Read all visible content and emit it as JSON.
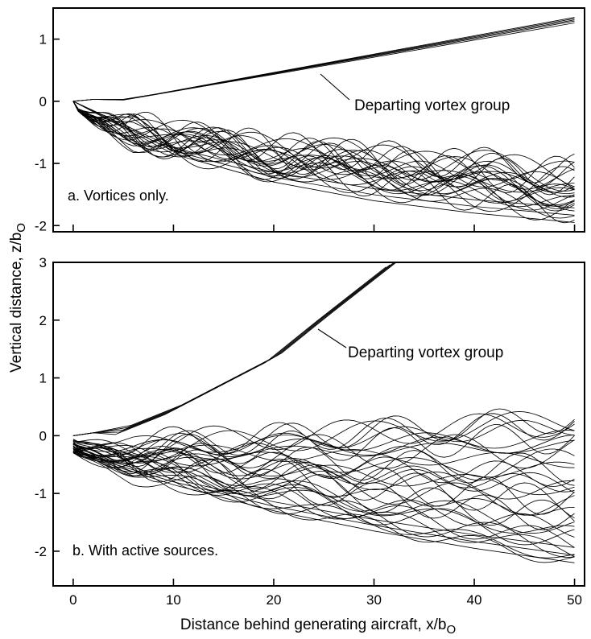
{
  "chart_data": [
    {
      "id": "a",
      "type": "line",
      "panel_label": "a. Vortices only.",
      "xlim": [
        -2,
        51
      ],
      "ylim": [
        -2.1,
        1.5
      ],
      "y_ticks": [
        1,
        0,
        -1,
        -2
      ],
      "y_tick_labels": [
        "1",
        "0",
        "-1",
        "-2"
      ],
      "annotation": "Departing vortex group",
      "grid": false,
      "groups": {
        "departing": {
          "count": 5,
          "x_end": 50,
          "y_end": [
            1.26,
            1.29,
            1.31,
            1.33,
            1.35
          ]
        },
        "main": {
          "count": 26,
          "mean_end_y": -1.55,
          "lower_envelope": [
            [
              0,
              0
            ],
            [
              10,
              -0.85
            ],
            [
              20,
              -1.3
            ],
            [
              30,
              -1.6
            ],
            [
              40,
              -1.8
            ],
            [
              50,
              -1.95
            ]
          ],
          "end_y_range": [
            -1.9,
            -1.2
          ]
        }
      }
    },
    {
      "id": "b",
      "type": "line",
      "panel_label": "b. With active sources.",
      "xlim": [
        -2,
        51
      ],
      "ylim": [
        -2.6,
        3
      ],
      "y_ticks": [
        3,
        2,
        1,
        0,
        -1,
        -2
      ],
      "y_tick_labels": [
        "3",
        "2",
        "1",
        "0",
        "-1",
        "-2"
      ],
      "x_ticks": [
        0,
        10,
        20,
        30,
        40,
        50
      ],
      "x_tick_labels": [
        "0",
        "10",
        "20",
        "30",
        "40",
        "50"
      ],
      "xlabel": "Distance behind generating aircraft, x/b",
      "xlabel_sub": "O",
      "annotation": "Departing vortex group",
      "grid": false,
      "groups": {
        "departing": {
          "count": 5,
          "points": [
            [
              5,
              0.1
            ],
            [
              10,
              0.45
            ],
            [
              20,
              1.35
            ],
            [
              25,
              2.05
            ],
            [
              32,
              3.0
            ]
          ]
        },
        "main": {
          "count": 34,
          "mean_end_y": -0.65,
          "end_y_range": [
            -2.2,
            0.5
          ],
          "lower_envelope": [
            [
              0,
              -0.3
            ],
            [
              10,
              -0.85
            ],
            [
              20,
              -1.3
            ],
            [
              30,
              -1.65
            ],
            [
              40,
              -1.95
            ],
            [
              50,
              -2.2
            ]
          ]
        }
      }
    }
  ],
  "shared": {
    "ylabel": "Vertical distance, z/b",
    "ylabel_sub": "O"
  }
}
